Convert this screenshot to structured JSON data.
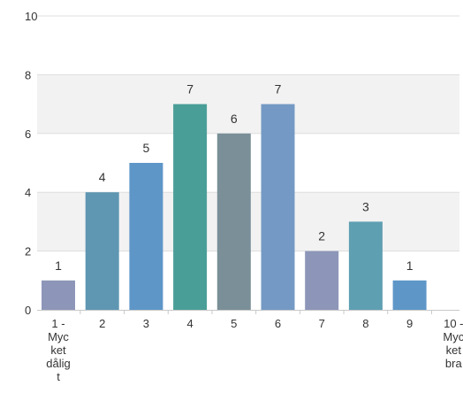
{
  "chart_data": {
    "type": "bar",
    "title": "",
    "xlabel": "",
    "ylabel": "",
    "ylim": [
      0,
      10
    ],
    "yticks": [
      0,
      2,
      4,
      6,
      8,
      10
    ],
    "grid": true,
    "categories": [
      [
        "1 -",
        "Myc",
        "ket",
        "dålig",
        "t"
      ],
      [
        "2"
      ],
      [
        "3"
      ],
      [
        "4"
      ],
      [
        "5"
      ],
      [
        "6"
      ],
      [
        "7"
      ],
      [
        "8"
      ],
      [
        "9"
      ],
      [
        "10 -",
        "Myc",
        "ket",
        "bra"
      ]
    ],
    "values": [
      1,
      4,
      5,
      7,
      6,
      7,
      2,
      3,
      1,
      0
    ],
    "data_labels": [
      "1",
      "4",
      "5",
      "7",
      "6",
      "7",
      "2",
      "3",
      "1",
      ""
    ],
    "colors": [
      "#8d96b8",
      "#5f97b2",
      "#5e96c8",
      "#4a9e98",
      "#7a8f98",
      "#7499c4",
      "#8d96b8",
      "#5f9fb2",
      "#5e96c8",
      "#7499c4"
    ]
  }
}
